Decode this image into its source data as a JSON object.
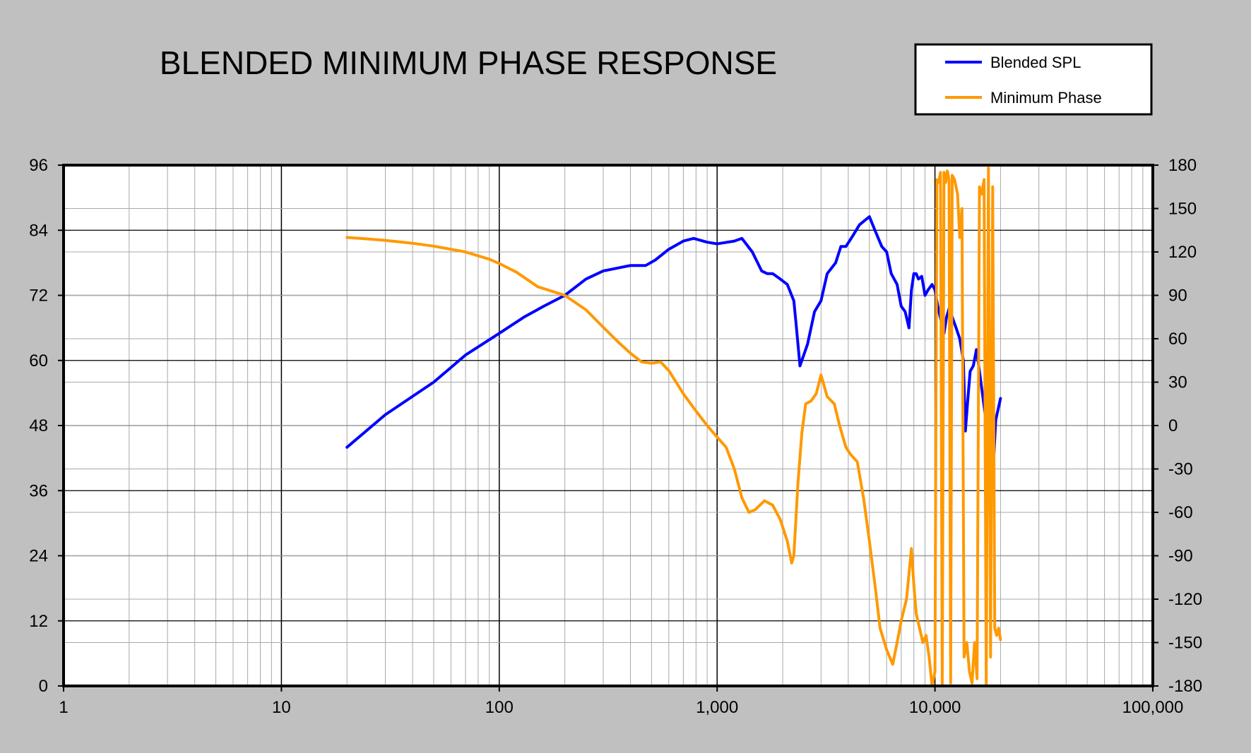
{
  "chart_data": {
    "type": "line",
    "title": "BLENDED MINIMUM PHASE RESPONSE",
    "x_scale": "log",
    "xlim": [
      1,
      100000
    ],
    "x_ticks": [
      "1",
      "10",
      "100",
      "1,000",
      "10,000",
      "100,000"
    ],
    "ylim_left": [
      0,
      96
    ],
    "y_ticks_left": [
      "0",
      "12",
      "24",
      "36",
      "48",
      "60",
      "72",
      "84",
      "96"
    ],
    "ylim_right": [
      -180,
      180
    ],
    "y_ticks_right": [
      "-180",
      "-150",
      "-120",
      "-90",
      "-60",
      "-30",
      "0",
      "30",
      "60",
      "90",
      "120",
      "150",
      "180"
    ],
    "grid": true,
    "legend_position": "top-right",
    "series": [
      {
        "name": "Blended SPL",
        "color": "#0000ff",
        "axis": "left",
        "x": [
          20,
          30,
          50,
          70,
          100,
          130,
          160,
          200,
          250,
          300,
          400,
          470,
          520,
          600,
          700,
          780,
          900,
          1000,
          1200,
          1300,
          1450,
          1600,
          1700,
          1800,
          1950,
          2100,
          2250,
          2300,
          2400,
          2600,
          2800,
          3000,
          3200,
          3500,
          3700,
          3900,
          4200,
          4500,
          5000,
          5300,
          5700,
          6000,
          6300,
          6700,
          7000,
          7300,
          7600,
          7800,
          8000,
          8200,
          8400,
          8700,
          9000,
          9300,
          9700,
          10000,
          10300,
          10700,
          11000,
          11300,
          11700,
          12000,
          12500,
          13000,
          13500,
          13800,
          14100,
          14500,
          15000,
          15500,
          16000,
          17000,
          18000,
          18500,
          19000,
          19500,
          20000
        ],
        "y": [
          44,
          50,
          56,
          61,
          65,
          68,
          70,
          72,
          75,
          76.5,
          77.5,
          77.5,
          78.5,
          80.5,
          82,
          82.5,
          81.8,
          81.5,
          82,
          82.5,
          80,
          76.5,
          76,
          76,
          75,
          74,
          71,
          67,
          59,
          63,
          69,
          71,
          76,
          78,
          81,
          81,
          83,
          85,
          86.5,
          84,
          81,
          80,
          76,
          74,
          70,
          69,
          66,
          73,
          76,
          76,
          75,
          75.5,
          72,
          73,
          74,
          73,
          70,
          67,
          65,
          68,
          70,
          68,
          66,
          64,
          60,
          47,
          52,
          58,
          59,
          62,
          58,
          50,
          48,
          40,
          49,
          51,
          53
        ]
      },
      {
        "name": "Minimum Phase",
        "color": "#ff9900",
        "axis": "right",
        "x": [
          20,
          25,
          30,
          40,
          50,
          70,
          90,
          100,
          120,
          150,
          200,
          250,
          300,
          350,
          400,
          450,
          500,
          550,
          600,
          700,
          800,
          900,
          1000,
          1100,
          1200,
          1300,
          1400,
          1500,
          1650,
          1800,
          1950,
          2100,
          2200,
          2250,
          2350,
          2450,
          2550,
          2700,
          2850,
          3000,
          3200,
          3450,
          3650,
          3900,
          4100,
          4400,
          4700,
          5000,
          5300,
          5600,
          6000,
          6400,
          6700,
          7000,
          7400,
          7800,
          8000,
          8200,
          8500,
          8800,
          9100,
          9400,
          9700,
          10000,
          10200,
          10400,
          10600,
          10800,
          11000,
          11200,
          11400,
          11600,
          11800,
          12000,
          12300,
          12700,
          13000,
          13300,
          13600,
          14000,
          14400,
          14800,
          15200,
          15600,
          16000,
          16400,
          16800,
          17200,
          17600,
          18000,
          18400,
          18800,
          19200,
          19600,
          20000
        ],
        "y": [
          130,
          129,
          128,
          126,
          124,
          120,
          115,
          112,
          106,
          96,
          90,
          80,
          68,
          58,
          50,
          44,
          43,
          44,
          38,
          22,
          10,
          0,
          -8,
          -15,
          -30,
          -50,
          -60,
          -58,
          -52,
          -55,
          -65,
          -80,
          -95,
          -90,
          -40,
          -5,
          15,
          17,
          22,
          35,
          20,
          15,
          0,
          -15,
          -20,
          -25,
          -50,
          -80,
          -110,
          -140,
          -155,
          -165,
          -150,
          -135,
          -120,
          -85,
          -110,
          -130,
          -140,
          -150,
          -145,
          -160,
          -180,
          -170,
          170,
          168,
          175,
          -180,
          175,
          168,
          176,
          170,
          -178,
          173,
          170,
          160,
          130,
          150,
          -160,
          -150,
          -170,
          -178,
          -150,
          -175,
          165,
          160,
          170,
          -180,
          178,
          -160,
          165,
          -140,
          -145,
          -140,
          -148
        ]
      }
    ]
  }
}
